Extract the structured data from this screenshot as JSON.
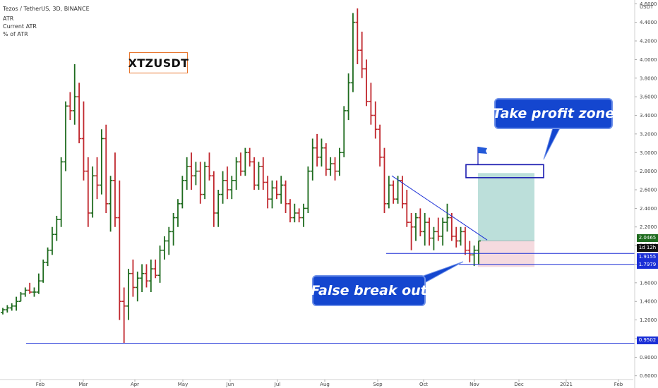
{
  "header": {
    "title": "Tezos / TetherUS, 3D, BINANCE",
    "indicator_1": "ATR",
    "indicator_2": "Current ATR",
    "indicator_3": "% of ATR"
  },
  "symbol_label": "XTZUSDT",
  "annotations": {
    "take_profit": "Take profit zone",
    "false_break": "False break out"
  },
  "price_labels": {
    "current": "2.0465",
    "countdown": "1d 12h",
    "level_1": "1.9155",
    "level_2": "1.7979",
    "level_3": "0.9502"
  },
  "colors": {
    "up_bar": "#1e6b1e",
    "down_bar": "#c0272d",
    "line": "#1b2fd6",
    "tp_zone": "#b5dbd6",
    "sl_zone": "#f4d6db",
    "callout": "#1446cf",
    "symbol_border": "#e8762e"
  },
  "chart_data": {
    "type": "ohlc",
    "title": "Tezos / TetherUS, 3D, BINANCE",
    "currency": "USDT",
    "x_ticks": [
      "Feb",
      "Mar",
      "Apr",
      "May",
      "Jun",
      "Jul",
      "Aug",
      "Sep",
      "Oct",
      "Nov",
      "Dec",
      "2021",
      "Feb"
    ],
    "y_ticks": [
      "0.6000",
      "0.8000",
      "1.0000",
      "1.2000",
      "1.4000",
      "1.6000",
      "1.8000",
      "2.0000",
      "2.2000",
      "2.4000",
      "2.6000",
      "2.8000",
      "3.0000",
      "3.2000",
      "3.4000",
      "3.6000",
      "3.8000",
      "4.0000",
      "4.2000",
      "4.4000",
      "4.6000"
    ],
    "ylim": [
      0.56,
      4.64
    ],
    "horizontal_levels": [
      1.9155,
      1.7979,
      0.9502
    ],
    "take_profit_zone": [
      2.73,
      2.87
    ],
    "trade_box": {
      "entry": 2.05,
      "target": 2.78,
      "stop": 1.77
    },
    "candles": [
      [
        1.28,
        1.33,
        1.26,
        1.31
      ],
      [
        1.31,
        1.36,
        1.28,
        1.33
      ],
      [
        1.33,
        1.38,
        1.3,
        1.35
      ],
      [
        1.35,
        1.45,
        1.3,
        1.4
      ],
      [
        1.4,
        1.5,
        1.4,
        1.48
      ],
      [
        1.48,
        1.55,
        1.45,
        1.52
      ],
      [
        1.52,
        1.6,
        1.48,
        1.5
      ],
      [
        1.5,
        1.55,
        1.45,
        1.5
      ],
      [
        1.5,
        1.7,
        1.48,
        1.62
      ],
      [
        1.62,
        1.85,
        1.6,
        1.82
      ],
      [
        1.82,
        1.98,
        1.78,
        1.95
      ],
      [
        1.95,
        2.2,
        1.9,
        2.12
      ],
      [
        2.12,
        2.32,
        2.05,
        2.28
      ],
      [
        2.28,
        2.95,
        2.2,
        2.9
      ],
      [
        2.9,
        3.55,
        2.8,
        3.5
      ],
      [
        3.5,
        3.65,
        3.35,
        3.45
      ],
      [
        3.45,
        3.95,
        3.3,
        3.6
      ],
      [
        3.6,
        3.75,
        3.1,
        3.15
      ],
      [
        3.15,
        3.55,
        2.7,
        2.8
      ],
      [
        2.8,
        2.95,
        2.2,
        2.35
      ],
      [
        2.35,
        2.85,
        2.3,
        2.75
      ],
      [
        2.75,
        2.95,
        2.5,
        2.65
      ],
      [
        2.65,
        3.25,
        2.55,
        3.15
      ],
      [
        3.15,
        3.3,
        2.35,
        2.45
      ],
      [
        2.45,
        2.75,
        2.15,
        2.7
      ],
      [
        2.7,
        3.0,
        2.2,
        2.3
      ],
      [
        2.3,
        2.7,
        1.2,
        1.4
      ],
      [
        1.4,
        1.55,
        0.95,
        1.35
      ],
      [
        1.35,
        1.75,
        1.2,
        1.7
      ],
      [
        1.7,
        1.85,
        1.45,
        1.55
      ],
      [
        1.55,
        1.72,
        1.4,
        1.65
      ],
      [
        1.65,
        1.8,
        1.5,
        1.7
      ],
      [
        1.7,
        1.8,
        1.55,
        1.62
      ],
      [
        1.62,
        1.85,
        1.5,
        1.75
      ],
      [
        1.75,
        1.85,
        1.65,
        1.68
      ],
      [
        1.68,
        2.0,
        1.6,
        1.95
      ],
      [
        1.95,
        2.1,
        1.85,
        2.05
      ],
      [
        2.05,
        2.2,
        1.9,
        2.15
      ],
      [
        2.15,
        2.35,
        2.0,
        2.3
      ],
      [
        2.3,
        2.5,
        2.2,
        2.45
      ],
      [
        2.45,
        2.75,
        2.4,
        2.7
      ],
      [
        2.7,
        2.95,
        2.6,
        2.85
      ],
      [
        2.85,
        3.0,
        2.6,
        2.75
      ],
      [
        2.75,
        2.9,
        2.65,
        2.8
      ],
      [
        2.8,
        2.9,
        2.45,
        2.55
      ],
      [
        2.55,
        2.9,
        2.5,
        2.85
      ],
      [
        2.85,
        3.0,
        2.7,
        2.75
      ],
      [
        2.75,
        2.8,
        2.2,
        2.35
      ],
      [
        2.35,
        2.6,
        2.2,
        2.55
      ],
      [
        2.55,
        2.8,
        2.45,
        2.7
      ],
      [
        2.7,
        2.85,
        2.5,
        2.6
      ],
      [
        2.6,
        2.75,
        2.5,
        2.7
      ],
      [
        2.7,
        2.95,
        2.6,
        2.9
      ],
      [
        2.9,
        3.0,
        2.75,
        2.8
      ],
      [
        2.8,
        3.05,
        2.75,
        3.0
      ],
      [
        3.0,
        3.05,
        2.85,
        2.9
      ],
      [
        2.9,
        2.95,
        2.6,
        2.65
      ],
      [
        2.65,
        2.9,
        2.6,
        2.85
      ],
      [
        2.85,
        2.95,
        2.6,
        2.68
      ],
      [
        2.68,
        2.75,
        2.4,
        2.5
      ],
      [
        2.5,
        2.7,
        2.4,
        2.62
      ],
      [
        2.62,
        2.7,
        2.5,
        2.55
      ],
      [
        2.55,
        2.75,
        2.45,
        2.65
      ],
      [
        2.65,
        2.7,
        2.35,
        2.45
      ],
      [
        2.45,
        2.5,
        2.25,
        2.3
      ],
      [
        2.3,
        2.45,
        2.25,
        2.35
      ],
      [
        2.35,
        2.4,
        2.25,
        2.3
      ],
      [
        2.3,
        2.45,
        2.2,
        2.4
      ],
      [
        2.4,
        2.85,
        2.35,
        2.8
      ],
      [
        2.8,
        3.15,
        2.7,
        3.05
      ],
      [
        3.05,
        3.2,
        2.85,
        2.95
      ],
      [
        2.95,
        3.15,
        2.85,
        3.05
      ],
      [
        3.05,
        3.1,
        2.75,
        2.82
      ],
      [
        2.82,
        2.95,
        2.75,
        2.88
      ],
      [
        2.88,
        2.95,
        2.7,
        2.8
      ],
      [
        2.8,
        3.05,
        2.75,
        3.0
      ],
      [
        3.0,
        3.5,
        2.95,
        3.45
      ],
      [
        3.45,
        3.85,
        3.35,
        3.75
      ],
      [
        3.75,
        4.5,
        3.65,
        4.4
      ],
      [
        4.4,
        4.55,
        3.95,
        4.1
      ],
      [
        4.1,
        4.3,
        3.8,
        3.9
      ],
      [
        3.9,
        4.0,
        3.5,
        3.55
      ],
      [
        3.55,
        3.75,
        3.3,
        3.4
      ],
      [
        3.4,
        3.55,
        3.15,
        3.25
      ],
      [
        3.25,
        3.3,
        2.85,
        2.95
      ],
      [
        2.95,
        3.05,
        2.35,
        2.45
      ],
      [
        2.45,
        2.75,
        2.4,
        2.65
      ],
      [
        2.65,
        2.7,
        2.45,
        2.5
      ],
      [
        2.5,
        2.75,
        2.45,
        2.7
      ],
      [
        2.7,
        2.75,
        2.4,
        2.45
      ],
      [
        2.45,
        2.6,
        2.2,
        2.25
      ],
      [
        2.25,
        2.35,
        1.95,
        2.2
      ],
      [
        2.2,
        2.35,
        2.05,
        2.3
      ],
      [
        2.3,
        2.4,
        2.1,
        2.15
      ],
      [
        2.15,
        2.35,
        2.0,
        2.25
      ],
      [
        2.25,
        2.3,
        2.0,
        2.08
      ],
      [
        2.08,
        2.2,
        1.95,
        2.15
      ],
      [
        2.15,
        2.3,
        2.05,
        2.1
      ],
      [
        2.1,
        2.3,
        2.0,
        2.25
      ],
      [
        2.25,
        2.45,
        2.15,
        2.3
      ],
      [
        2.3,
        2.35,
        2.05,
        2.1
      ],
      [
        2.1,
        2.2,
        1.98,
        2.05
      ],
      [
        2.05,
        2.2,
        2.0,
        2.15
      ],
      [
        2.15,
        2.2,
        1.9,
        1.95
      ],
      [
        1.95,
        2.05,
        1.82,
        1.9
      ],
      [
        1.9,
        2.0,
        1.78,
        1.95
      ],
      [
        1.95,
        2.05,
        1.8,
        2.05
      ]
    ]
  }
}
